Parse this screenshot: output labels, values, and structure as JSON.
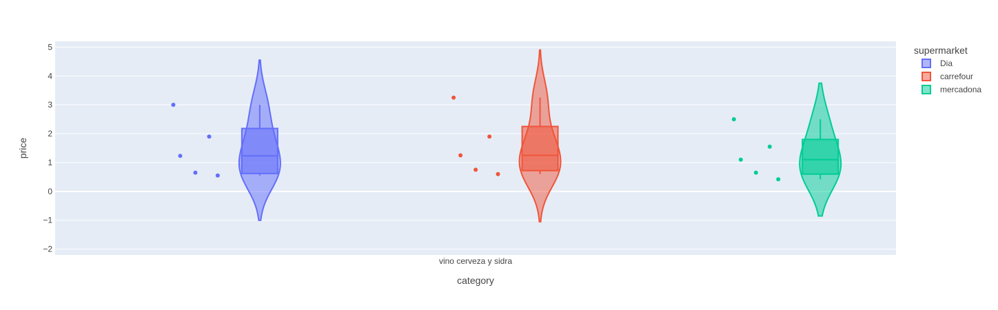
{
  "chart_data": {
    "type": "violin",
    "xlabel": "category",
    "ylabel": "price",
    "categories": [
      "vino cerveza y sidra"
    ],
    "yticks": [
      -2,
      -1,
      0,
      1,
      2,
      3,
      4,
      5
    ],
    "ylim": [
      -2.2,
      5.2
    ],
    "grid": true,
    "legend_title": "supermarket",
    "legend_position": "top-right",
    "series": [
      {
        "name": "Dia",
        "color": "#636efa",
        "points": [
          3.0,
          1.9,
          1.23,
          0.65,
          0.55
        ],
        "box": {
          "q1": 0.62,
          "median": 1.23,
          "q3": 2.18,
          "whisker_low": 0.55,
          "whisker_high": 3.0
        },
        "kde_range": [
          -1.0,
          4.55
        ]
      },
      {
        "name": "carrefour",
        "color": "#ef553b",
        "points": [
          3.25,
          1.9,
          1.25,
          0.75,
          0.6
        ],
        "box": {
          "q1": 0.72,
          "median": 1.25,
          "q3": 2.25,
          "whisker_low": 0.6,
          "whisker_high": 3.25
        },
        "kde_range": [
          -1.05,
          4.9
        ]
      },
      {
        "name": "mercadona",
        "color": "#00cc96",
        "points": [
          2.5,
          1.55,
          1.1,
          0.65,
          0.42
        ],
        "box": {
          "q1": 0.6,
          "median": 1.1,
          "q3": 1.8,
          "whisker_low": 0.42,
          "whisker_high": 2.5
        },
        "kde_range": [
          -0.85,
          3.75
        ]
      }
    ]
  }
}
